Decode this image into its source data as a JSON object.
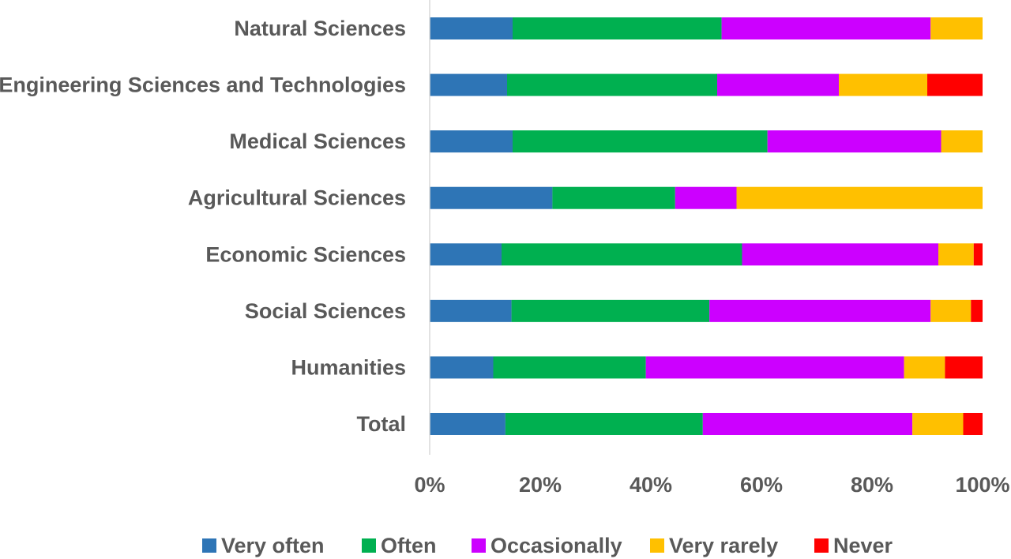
{
  "chart_data": {
    "type": "bar",
    "orientation": "horizontal",
    "stacked": "percent",
    "title": "",
    "xlabel": "",
    "ylabel": "",
    "categories": [
      "Natural Sciences",
      "Engineering Sciences and Technologies",
      "Medical Sciences",
      "Agricultural Sciences",
      "Economic Sciences",
      "Social Sciences",
      "Humanities",
      "Total"
    ],
    "series": [
      {
        "name": "Very often",
        "color": "#2e75b6",
        "values": [
          15.0,
          14.0,
          15.0,
          22.2,
          13.0,
          14.8,
          11.5,
          13.7
        ]
      },
      {
        "name": "Often",
        "color": "#00b050",
        "values": [
          37.8,
          38.0,
          46.1,
          22.2,
          43.5,
          35.8,
          27.6,
          35.7
        ]
      },
      {
        "name": "Occasionally",
        "color": "#cc00ff",
        "values": [
          37.8,
          22.0,
          31.4,
          11.1,
          35.5,
          40.0,
          46.7,
          37.9
        ]
      },
      {
        "name": "Very rarely",
        "color": "#ffc000",
        "values": [
          9.4,
          16.0,
          7.5,
          44.5,
          6.4,
          7.3,
          7.4,
          9.2
        ]
      },
      {
        "name": "Never",
        "color": "#ff0000",
        "values": [
          0.0,
          10.0,
          0.0,
          0.0,
          1.6,
          2.1,
          6.8,
          3.5
        ]
      }
    ],
    "xlim": [
      0,
      100
    ],
    "xticks": [
      "0%",
      "20%",
      "40%",
      "60%",
      "80%",
      "100%"
    ],
    "grid": false,
    "legend_position": "bottom"
  }
}
